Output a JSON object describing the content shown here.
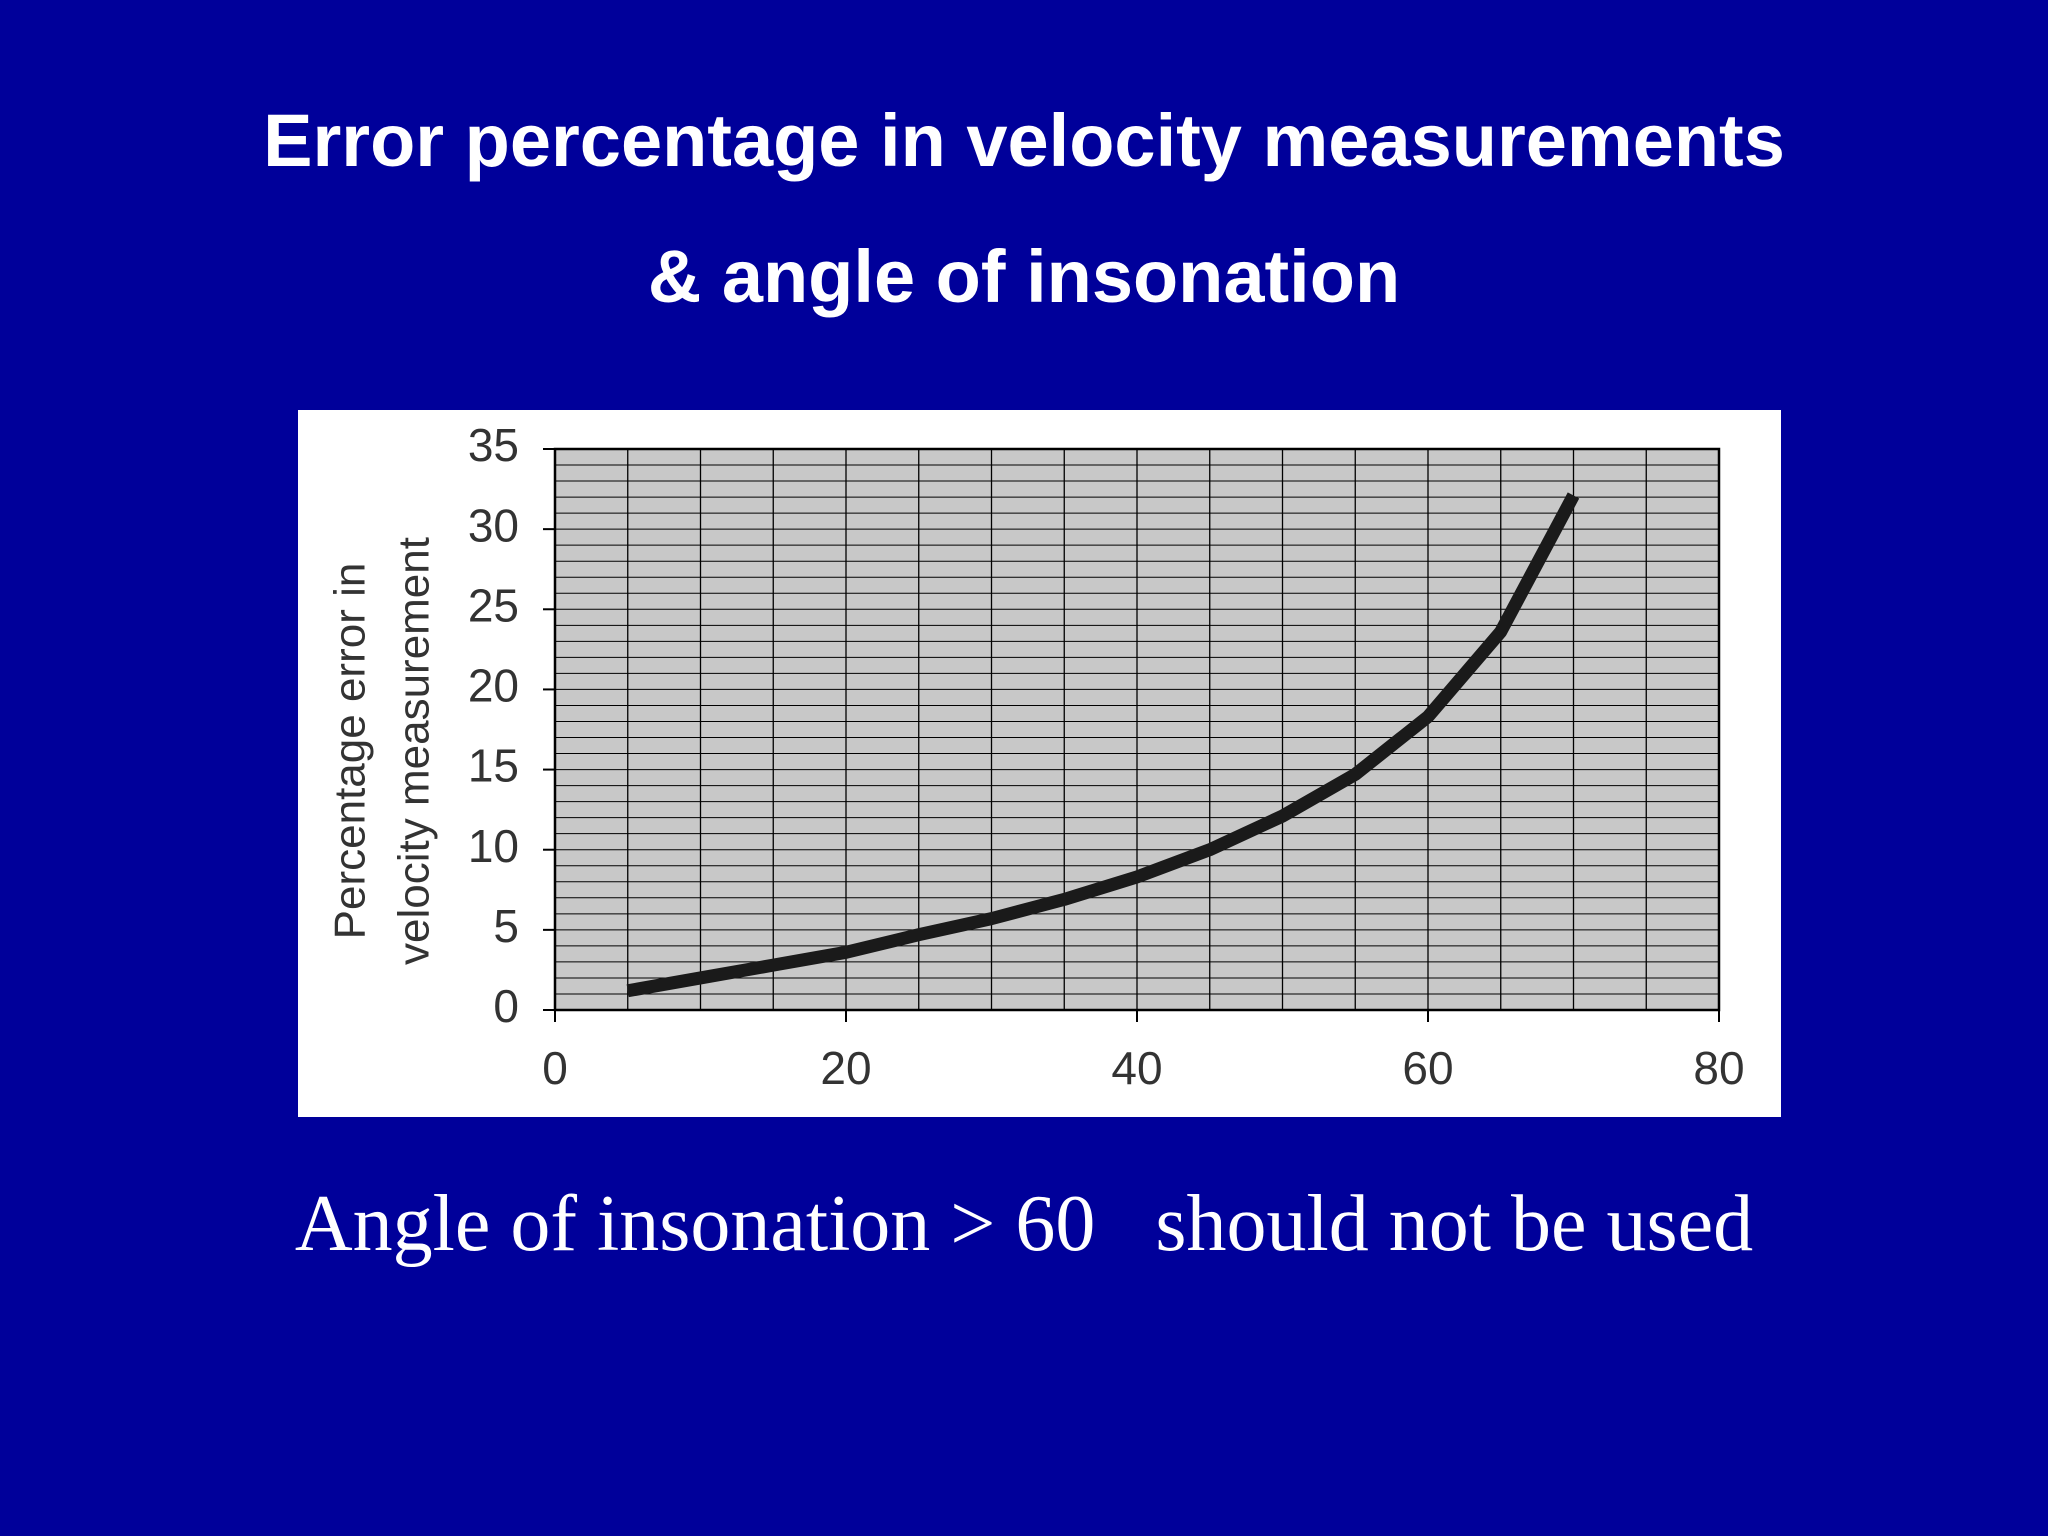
{
  "title_lines": [
    "Error percentage in velocity measurements",
    "& angle of insonation"
  ],
  "caption": "Angle of insonation > 60   should not be used",
  "chart_data": {
    "type": "line",
    "ylabel": [
      "Percentage error in",
      "velocity measurement"
    ],
    "x": [
      5,
      10,
      15,
      20,
      25,
      30,
      35,
      40,
      45,
      50,
      55,
      60,
      65,
      70
    ],
    "series": [
      {
        "name": "Percentage error",
        "color": "#1a1a1a",
        "values": [
          1.2,
          2.0,
          2.8,
          3.6,
          4.7,
          5.7,
          6.9,
          8.3,
          10.0,
          12.1,
          14.7,
          18.3,
          23.6,
          32.1
        ]
      }
    ],
    "xlim": [
      0,
      80
    ],
    "xticks": [
      0,
      20,
      40,
      60,
      80
    ],
    "ylim": [
      0,
      35
    ],
    "yticks": [
      0,
      5,
      10,
      15,
      20,
      25,
      30,
      35
    ],
    "grid": true,
    "minor_grid": {
      "x": 5,
      "y": 1
    },
    "plot_color": "#c8c8c8"
  }
}
